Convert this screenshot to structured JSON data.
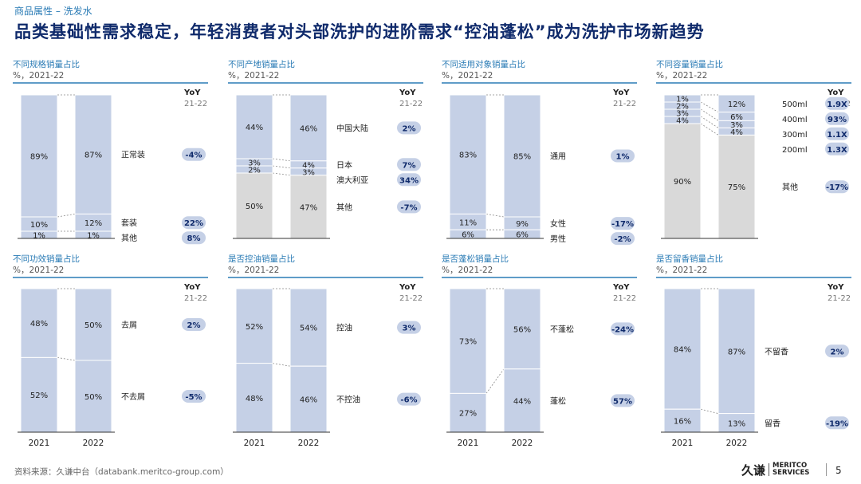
{
  "header": {
    "breadcrumb": "商品属性 – 洗发水",
    "title": "品类基础性需求稳定，年轻消费者对头部洗护的进阶需求“控油蓬松”成为洗护市场新趋势"
  },
  "footer": {
    "source": "资料来源：久谦中台（databank.meritco-group.com）",
    "logo_cn": "久谦",
    "logo_en_1": "MERITCO",
    "logo_en_2": "SERVICES",
    "page_number": "5"
  },
  "common": {
    "subtitle": "%，2021-22",
    "yoy": "YoY",
    "yoy_sub": "21-22"
  },
  "colors": {
    "blue": "#c5d0e6",
    "gray": "#d9d9d9",
    "title_blue": "#2a7bb5",
    "dark": "#0f2a6b",
    "badge": "#c5d0e6"
  },
  "chart_data": [
    {
      "type": "bar",
      "stacked": true,
      "percent": true,
      "title": "不同规格销量占比",
      "subtitle": "%，2021-22",
      "categories": [
        "2021",
        "2022"
      ],
      "series": [
        {
          "name": "正常装",
          "values": [
            89,
            87
          ],
          "color": "blue",
          "label_cells": [
            "89%",
            "87%"
          ],
          "yoy": "-4%"
        },
        {
          "name": "套装",
          "values": [
            10,
            12
          ],
          "color": "blue",
          "label_cells": [
            "10%",
            "12%"
          ],
          "yoy": "22%"
        },
        {
          "name": "其他",
          "values": [
            1,
            1
          ],
          "color": "blue",
          "label_cells": [
            "1%",
            "1%"
          ],
          "yoy": "8%"
        }
      ]
    },
    {
      "type": "bar",
      "stacked": true,
      "percent": true,
      "title": "不同产地销量占比",
      "subtitle": "%，2021-22",
      "categories": [
        "2021",
        "2022"
      ],
      "series": [
        {
          "name": "中国大陆",
          "values": [
            44,
            46
          ],
          "color": "blue",
          "label_cells": [
            "44%",
            "46%"
          ],
          "yoy": "2%"
        },
        {
          "name": "日本",
          "values": [
            3,
            4
          ],
          "color": "blue",
          "label_cells": [
            "3%",
            "4%"
          ],
          "yoy": "7%"
        },
        {
          "name": "澳大利亚",
          "values": [
            2,
            3
          ],
          "color": "blue",
          "label_cells": [
            "2%",
            "3%"
          ],
          "yoy": "34%"
        },
        {
          "name": "其他",
          "values": [
            50,
            47
          ],
          "color": "gray",
          "label_cells": [
            "50%",
            "47%"
          ],
          "yoy": "-7%"
        }
      ]
    },
    {
      "type": "bar",
      "stacked": true,
      "percent": true,
      "title": "不同适用对象销量占比",
      "subtitle": "%，2021-22",
      "categories": [
        "2021",
        "2022"
      ],
      "series": [
        {
          "name": "通用",
          "values": [
            83,
            85
          ],
          "color": "blue",
          "label_cells": [
            "83%",
            "85%"
          ],
          "yoy": "1%"
        },
        {
          "name": "女性",
          "values": [
            11,
            9
          ],
          "color": "blue",
          "label_cells": [
            "11%",
            "9%"
          ],
          "yoy": "-17%"
        },
        {
          "name": "男性",
          "values": [
            6,
            6
          ],
          "color": "blue",
          "label_cells": [
            "6%",
            "6%"
          ],
          "yoy": "-2%"
        }
      ]
    },
    {
      "type": "bar",
      "stacked": true,
      "percent": true,
      "title": "不同容量销量占比",
      "subtitle": "%，2021-22",
      "categories": [
        "2021",
        "2022"
      ],
      "series": [
        {
          "name": "500ml",
          "values": [
            1,
            12
          ],
          "color": "blue",
          "label_cells": [
            "1%",
            "12%"
          ],
          "yoy": "1.9X"
        },
        {
          "name": "400ml",
          "values": [
            2,
            6
          ],
          "color": "blue",
          "label_cells": [
            "2%",
            "6%"
          ],
          "yoy": "93%"
        },
        {
          "name": "300ml",
          "values": [
            3,
            3
          ],
          "color": "blue",
          "label_cells": [
            "3%",
            "3%"
          ],
          "yoy": "1.1X"
        },
        {
          "name": "200ml",
          "values": [
            4,
            4
          ],
          "color": "blue",
          "label_cells": [
            "4%",
            "4%"
          ],
          "yoy": "1.3X"
        },
        {
          "name": "其他",
          "values": [
            90,
            75
          ],
          "color": "gray",
          "label_cells": [
            "90%",
            "75%"
          ],
          "yoy": "-17%"
        }
      ]
    },
    {
      "type": "bar",
      "stacked": true,
      "percent": true,
      "title": "不同功效销量占比",
      "subtitle": "%，2021-22",
      "categories": [
        "2021",
        "2022"
      ],
      "series": [
        {
          "name": "去屑",
          "values": [
            48,
            50
          ],
          "color": "blue",
          "label_cells": [
            "48%",
            "50%"
          ],
          "yoy": "2%"
        },
        {
          "name": "不去屑",
          "values": [
            52,
            50
          ],
          "color": "blue",
          "label_cells": [
            "52%",
            "50%"
          ],
          "yoy": "-5%"
        }
      ]
    },
    {
      "type": "bar",
      "stacked": true,
      "percent": true,
      "title": "是否控油销量占比",
      "subtitle": "%，2021-22",
      "categories": [
        "2021",
        "2022"
      ],
      "series": [
        {
          "name": "控油",
          "values": [
            52,
            54
          ],
          "color": "blue",
          "label_cells": [
            "52%",
            "54%"
          ],
          "yoy": "3%"
        },
        {
          "name": "不控油",
          "values": [
            48,
            46
          ],
          "color": "blue",
          "label_cells": [
            "48%",
            "46%"
          ],
          "yoy": "-6%"
        }
      ]
    },
    {
      "type": "bar",
      "stacked": true,
      "percent": true,
      "title": "是否蓬松销量占比",
      "subtitle": "%，2021-22",
      "categories": [
        "2021",
        "2022"
      ],
      "series": [
        {
          "name": "不蓬松",
          "values": [
            73,
            56
          ],
          "color": "blue",
          "label_cells": [
            "73%",
            "56%"
          ],
          "yoy": "-24%"
        },
        {
          "name": "蓬松",
          "values": [
            27,
            44
          ],
          "color": "blue",
          "label_cells": [
            "27%",
            "44%"
          ],
          "yoy": "57%"
        }
      ]
    },
    {
      "type": "bar",
      "stacked": true,
      "percent": true,
      "title": "是否留香销量占比",
      "subtitle": "%，2021-22",
      "categories": [
        "2021",
        "2022"
      ],
      "series": [
        {
          "name": "不留香",
          "values": [
            84,
            87
          ],
          "color": "blue",
          "label_cells": [
            "84%",
            "87%"
          ],
          "yoy": "2%"
        },
        {
          "name": "留香",
          "values": [
            16,
            13
          ],
          "color": "blue",
          "label_cells": [
            "16%",
            "13%"
          ],
          "yoy": "-19%"
        }
      ]
    }
  ]
}
